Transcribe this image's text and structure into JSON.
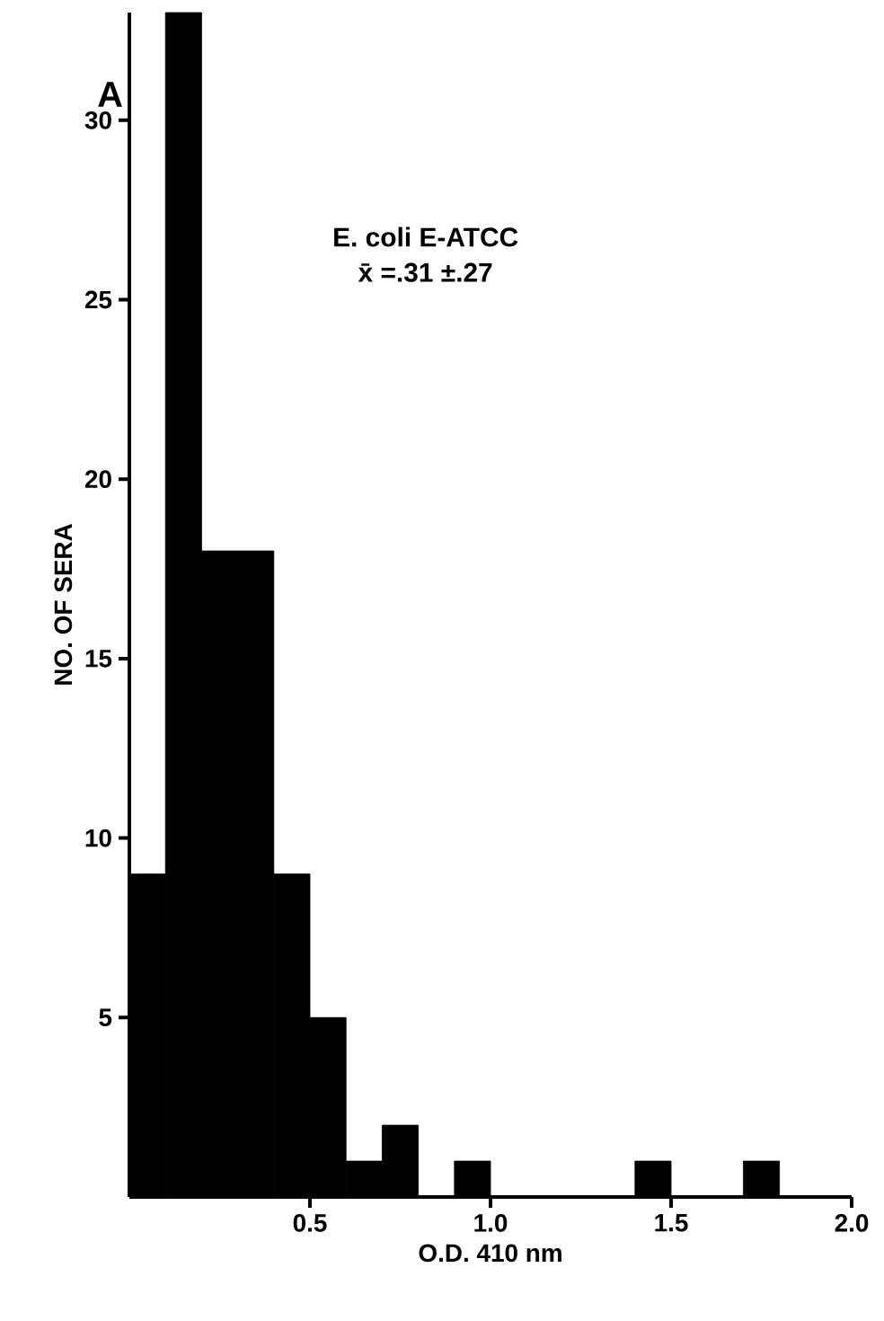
{
  "chart_data": {
    "type": "histogram",
    "title": "A",
    "xlabel": "O.D. 410 nm",
    "ylabel": "NO. OF SERA",
    "annotations": [
      "E. coli E-ATCC",
      "x̄ =.31 ±.27"
    ],
    "bins": [
      0,
      0.1,
      0.2,
      0.3,
      0.4,
      0.5,
      0.6,
      0.7,
      0.8,
      0.9,
      1.0,
      1.1,
      1.2,
      1.3,
      1.4,
      1.5,
      1.6,
      1.7,
      1.8
    ],
    "values": [
      9,
      33,
      18,
      18,
      9,
      5,
      1,
      2,
      0,
      1,
      0,
      0,
      0,
      0,
      1,
      0,
      0,
      1
    ],
    "color": "#000000",
    "xlim": [
      0,
      2
    ],
    "ylim": [
      0,
      33
    ],
    "xticks": [
      0.5,
      {
        "value": 1,
        "label": "1.0"
      },
      1.5,
      {
        "value": 2,
        "label": "2.0"
      }
    ],
    "yticks": [
      5,
      10,
      15,
      20,
      25,
      30
    ],
    "grid": false
  }
}
